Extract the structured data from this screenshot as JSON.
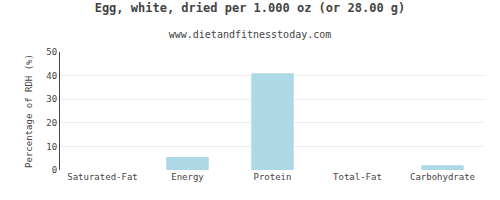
{
  "chart_data": {
    "type": "bar",
    "title": "Egg, white, dried per 1.000 oz (or 28.00 g)",
    "subtitle": "www.dietandfitnesstoday.com",
    "categories": [
      "Saturated-Fat",
      "Energy",
      "Protein",
      "Total-Fat",
      "Carbohydrate"
    ],
    "values": [
      0,
      5.5,
      41,
      0,
      2.0
    ],
    "color": "#add8e6",
    "ylabel": "Percentage of RDH (%)",
    "ylim": [
      0,
      50
    ],
    "yticks": [
      0,
      10,
      20,
      30,
      40,
      50
    ],
    "grid": true
  }
}
